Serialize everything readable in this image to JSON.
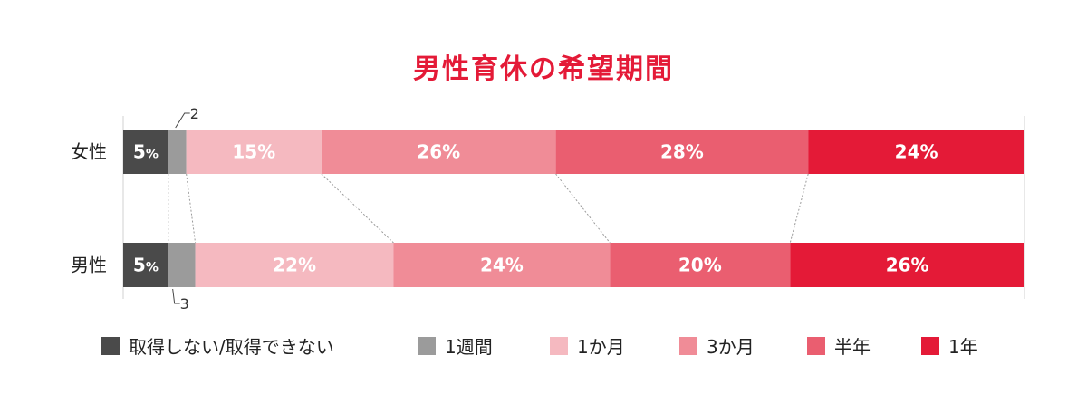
{
  "chart_data": {
    "type": "bar",
    "orientation": "horizontal",
    "stacked": true,
    "title": "男性育休の希望期間",
    "categories": [
      "女性",
      "男性"
    ],
    "series": [
      {
        "name": "取得しない/取得できない",
        "values": [
          5,
          5
        ],
        "labels": [
          "5%",
          "5%"
        ],
        "color": "#4a4a4a"
      },
      {
        "name": "1週間",
        "values": [
          2,
          3
        ],
        "labels": [
          "2",
          "3"
        ],
        "color": "#9b9b9b"
      },
      {
        "name": "1か月",
        "values": [
          15,
          22
        ],
        "labels": [
          "15%",
          "22%"
        ],
        "color": "#f5b9c0"
      },
      {
        "name": "3か月",
        "values": [
          26,
          24
        ],
        "labels": [
          "26%",
          "24%"
        ],
        "color": "#f08c97"
      },
      {
        "name": "半年",
        "values": [
          28,
          20
        ],
        "labels": [
          "28%",
          "20%"
        ],
        "color": "#ea5e70"
      },
      {
        "name": "1年",
        "values": [
          24,
          26
        ],
        "labels": [
          "24%",
          "26%"
        ],
        "color": "#e41a37"
      }
    ],
    "legend_position": "bottom",
    "grid": false
  }
}
